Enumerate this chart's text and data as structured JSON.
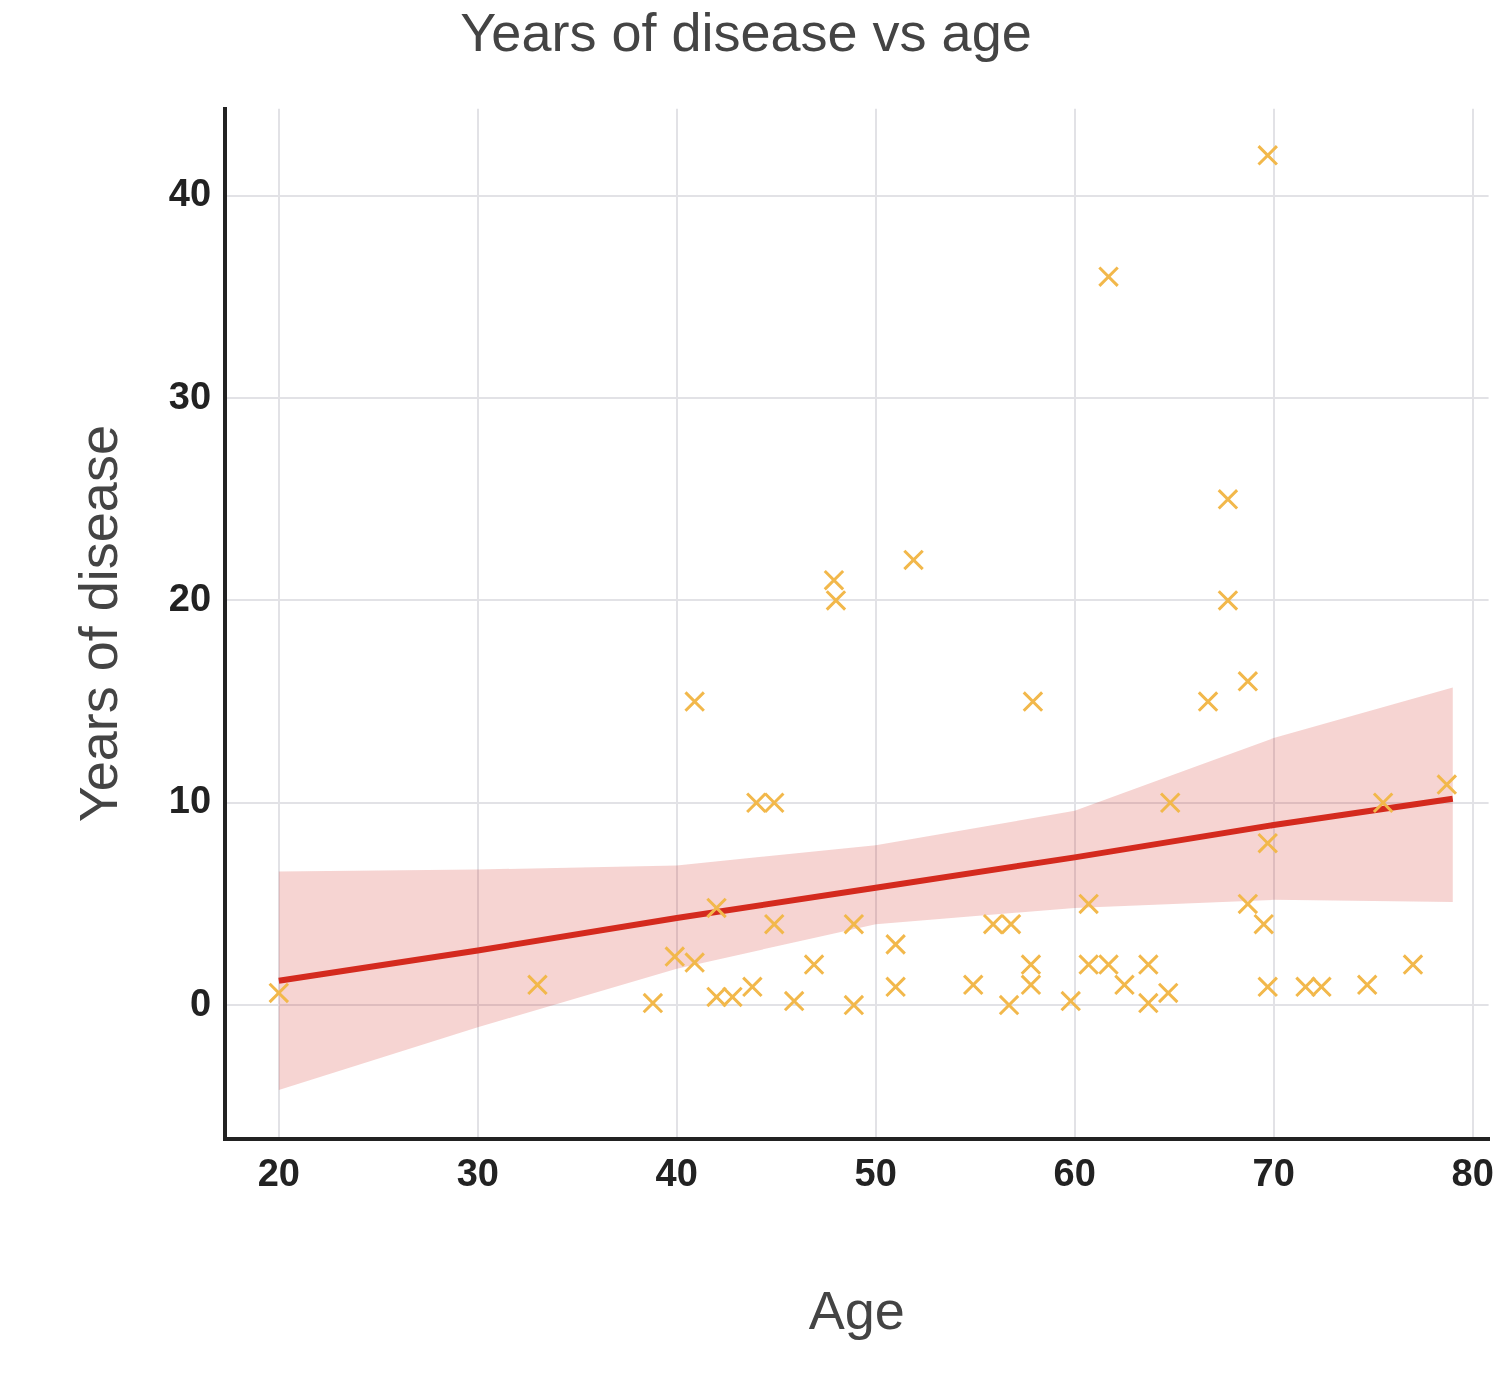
{
  "chart_data": {
    "type": "scatter",
    "title": "Years of disease vs age",
    "xlabel": "Age",
    "ylabel": "Years of disease",
    "xlim": [
      17.3,
      80.8
    ],
    "ylim": [
      -6.6,
      44.3
    ],
    "xticks": [
      20,
      30,
      40,
      50,
      60,
      70,
      80
    ],
    "yticks": [
      0,
      10,
      20,
      30,
      40
    ],
    "grid": true,
    "series": [
      {
        "type": "scatter",
        "marker": "cross",
        "color": "#f2b84b",
        "x": [
          20,
          33,
          38.8,
          39.9,
          40.9,
          40.9,
          42,
          42,
          42.8,
          43.8,
          44,
          44.9,
          44.9,
          45.9,
          46.9,
          47.9,
          48,
          48.9,
          48.9,
          51,
          51,
          51.9,
          54.9,
          55.9,
          56.8,
          56.7,
          57.9,
          57.8,
          57.8,
          59.8,
          60.7,
          60.7,
          61.7,
          61.7,
          62.5,
          63.7,
          63.7,
          64.7,
          64.8,
          66.7,
          67.7,
          67.7,
          68.7,
          68.7,
          69.5,
          69.7,
          69.7,
          69.7,
          71.6,
          72.4,
          74.7,
          75.5,
          77,
          78.7
        ],
        "values": [
          0.6,
          1,
          0.1,
          2.4,
          2.1,
          15,
          4.8,
          0.4,
          0.4,
          0.9,
          10,
          10,
          4,
          0.2,
          2,
          21,
          20,
          4,
          0,
          3,
          0.9,
          22,
          1,
          4,
          4,
          0,
          15,
          2,
          1,
          0.2,
          5,
          2,
          2,
          36,
          1,
          2,
          0.1,
          0.6,
          10,
          15,
          25,
          20,
          16,
          5,
          4,
          8,
          42,
          0.9,
          0.9,
          0.9,
          1,
          10,
          2,
          10.9
        ]
      },
      {
        "type": "line",
        "color": "#d42a1e",
        "x": [
          20,
          30,
          40,
          50,
          60,
          70,
          79
        ],
        "values": [
          1.2,
          2.7,
          4.3,
          5.8,
          7.3,
          8.9,
          10.2
        ],
        "lower": [
          -4.2,
          -1.1,
          1.8,
          4.0,
          4.8,
          5.2,
          5.1
        ],
        "upper": [
          6.6,
          6.7,
          6.9,
          7.9,
          9.6,
          13.2,
          15.7
        ]
      }
    ]
  }
}
